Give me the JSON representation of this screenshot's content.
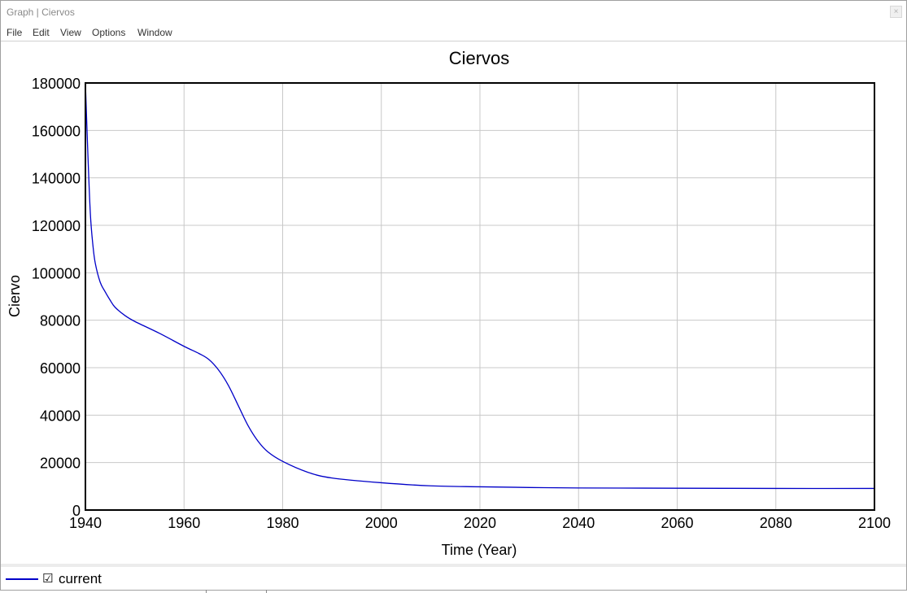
{
  "window": {
    "title": "Graph | Ciervos",
    "close_glyph": "×"
  },
  "menu": {
    "items": [
      "File",
      "Edit",
      "View",
      "Options",
      "Window"
    ]
  },
  "chart_data": {
    "type": "line",
    "title": "Ciervos",
    "xlabel": "Time (Year)",
    "ylabel": "Ciervo",
    "xlim": [
      1940,
      2100
    ],
    "ylim": [
      0,
      180000
    ],
    "xticks": [
      1940,
      1960,
      1980,
      2000,
      2020,
      2040,
      2060,
      2080,
      2100
    ],
    "yticks": [
      0,
      20000,
      40000,
      60000,
      80000,
      100000,
      120000,
      140000,
      160000,
      180000
    ],
    "grid": true,
    "series": [
      {
        "name": "current",
        "color": "#0000c8",
        "x": [
          1940,
          1940.5,
          1941,
          1941.5,
          1942,
          1943,
          1944,
          1945,
          1946,
          1948,
          1950,
          1955,
          1960,
          1963,
          1965,
          1967,
          1969,
          1971,
          1973,
          1975,
          1977,
          1980,
          1985,
          1990,
          2000,
          2010,
          2020,
          2030,
          2040,
          2060,
          2080,
          2100
        ],
        "values": [
          180000,
          150000,
          125000,
          112000,
          104000,
          96000,
          92000,
          88500,
          85500,
          82000,
          79500,
          74500,
          69000,
          66000,
          63500,
          59000,
          52500,
          44000,
          35500,
          29000,
          24500,
          20500,
          16000,
          13500,
          11500,
          10200,
          9800,
          9500,
          9300,
          9200,
          9100,
          9100
        ]
      }
    ]
  },
  "legend": {
    "checkbox": "☑",
    "label": "current",
    "color": "#0000c8"
  }
}
